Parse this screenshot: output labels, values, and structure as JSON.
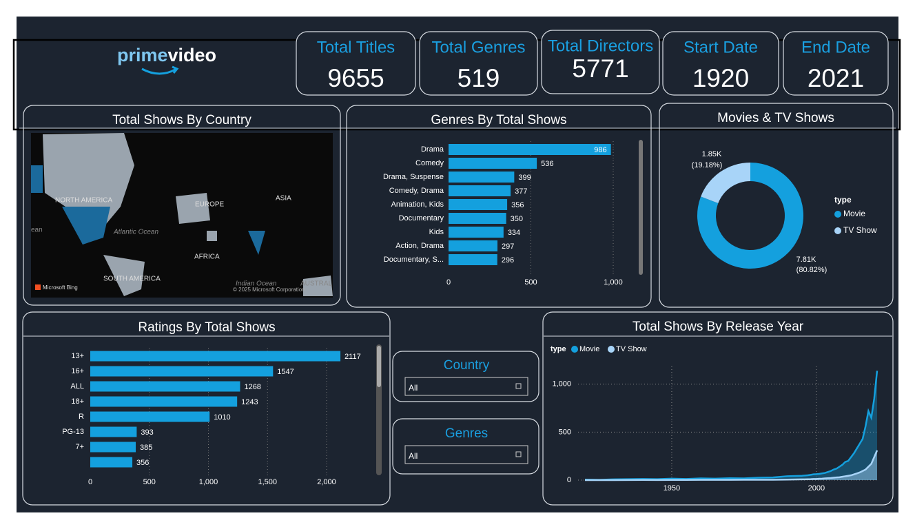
{
  "logo": [
    "prime",
    "video"
  ],
  "kpis": [
    {
      "label": "Total Titles",
      "value": 9655
    },
    {
      "label": "Total Genres",
      "value": 519
    },
    {
      "label": "Total Directors",
      "value": 5771
    },
    {
      "label": "Start Date",
      "value": 1920
    },
    {
      "label": "End Date",
      "value": 2021
    }
  ],
  "slicers": [
    {
      "title": "Country",
      "selection": "All"
    },
    {
      "title": "Genres",
      "selection": "All"
    }
  ],
  "map": {
    "title": "Total Shows By Country",
    "labels": [
      "NORTH AMERICA",
      "EUROPE",
      "ASIA",
      "AFRICA",
      "SOUTH AMERICA",
      "Atlantic Ocean",
      "Indian Ocean",
      "AUSTRAL",
      "ean",
      "Microsoft Bing",
      "© 2025 Microsoft Corporation"
    ]
  },
  "chart_data": [
    {
      "type": "bar",
      "title": "Genres By Total Shows",
      "categories": [
        "Drama",
        "Comedy",
        "Drama, Suspense",
        "Comedy, Drama",
        "Animation, Kids",
        "Documentary",
        "Kids",
        "Action, Drama",
        "Documentary, S..."
      ],
      "values": [
        986,
        536,
        399,
        377,
        356,
        350,
        334,
        297,
        296
      ],
      "color": "#14a0de",
      "xlim": [
        0,
        1000
      ],
      "xticks": [
        0,
        500,
        {
          "value": 1000,
          "label": "1,000"
        }
      ],
      "grid": true
    },
    {
      "type": "pie",
      "title": "Movies & TV Shows",
      "donut": true,
      "categories": [
        "Movie",
        "TV Show"
      ],
      "values": [
        7810,
        1850
      ],
      "value_labels": [
        "7.81K",
        "1.85K"
      ],
      "percent_labels": [
        "(80.82%)",
        "(19.18%)"
      ],
      "colors": [
        "#14a0de",
        "#a8d4f8"
      ],
      "legend_title": "type",
      "legend": "right"
    },
    {
      "type": "bar",
      "title": "Ratings By Total Shows",
      "categories": [
        "13+",
        "16+",
        "ALL",
        "18+",
        "R",
        "PG-13",
        "7+",
        null
      ],
      "values": [
        2117,
        1547,
        1268,
        1243,
        1010,
        393,
        385,
        356
      ],
      "color": "#14a0de",
      "xlim": [
        0,
        2300
      ],
      "xticks": [
        0,
        500,
        {
          "value": 1000,
          "label": "1,000"
        },
        {
          "value": 1500,
          "label": "1,500"
        },
        {
          "value": 2000,
          "label": "2,000"
        }
      ],
      "grid": true
    },
    {
      "type": "area",
      "title": "Total Shows By Release Year",
      "legend_title": "type",
      "x": [
        1920,
        1925,
        1930,
        1935,
        1940,
        1945,
        1950,
        1955,
        1960,
        1965,
        1970,
        1975,
        1980,
        1985,
        1990,
        1995,
        1996,
        1997,
        1998,
        1999,
        2000,
        2001,
        2002,
        2003,
        2004,
        2005,
        2006,
        2007,
        2008,
        2009,
        2010,
        2011,
        2012,
        2013,
        2014,
        2015,
        2016,
        2017,
        2018,
        2019,
        2020,
        2021
      ],
      "series": [
        {
          "name": "Movie",
          "color": "#14a0de",
          "values": [
            5,
            3,
            8,
            10,
            12,
            10,
            15,
            12,
            18,
            15,
            20,
            18,
            25,
            28,
            40,
            45,
            48,
            50,
            55,
            60,
            62,
            65,
            70,
            75,
            85,
            95,
            110,
            120,
            140,
            160,
            190,
            200,
            240,
            280,
            330,
            380,
            430,
            560,
            720,
            650,
            850,
            1140
          ]
        },
        {
          "name": "TV Show",
          "color": "#a8d4f8",
          "values": [
            0,
            0,
            0,
            1,
            2,
            1,
            2,
            2,
            3,
            3,
            3,
            4,
            4,
            4,
            5,
            8,
            8,
            9,
            10,
            12,
            12,
            14,
            15,
            18,
            20,
            22,
            25,
            28,
            30,
            35,
            40,
            45,
            50,
            60,
            70,
            80,
            95,
            110,
            140,
            170,
            240,
            310
          ]
        }
      ],
      "xlim": [
        1920,
        2021
      ],
      "ylim": [
        0,
        1300
      ],
      "xticks": [
        1950,
        2000
      ],
      "yticks": [
        0,
        500,
        {
          "value": 1000,
          "label": "1,000"
        }
      ],
      "grid": true
    }
  ]
}
